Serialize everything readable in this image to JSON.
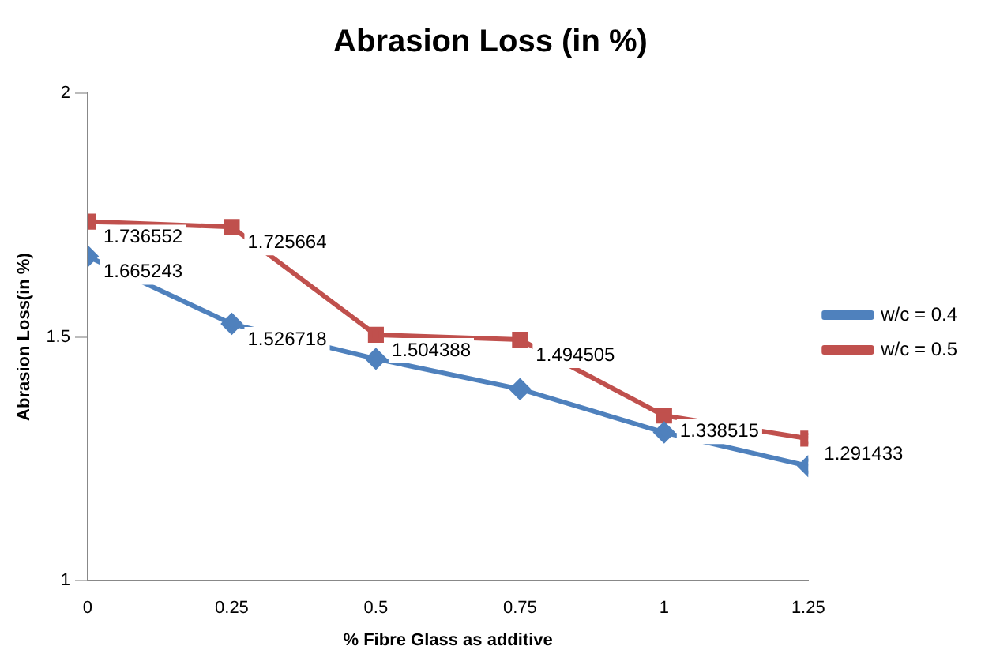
{
  "chart_data": {
    "type": "line",
    "title": "Abrasion Loss (in %)",
    "xlabel": "% Fibre Glass as additive",
    "ylabel": "Abrasion Loss(in %)",
    "x": [
      0,
      0.25,
      0.5,
      0.75,
      1,
      1.25
    ],
    "xlim": [
      0,
      1.25
    ],
    "xticks": [
      0,
      0.25,
      0.5,
      0.75,
      1,
      1.25
    ],
    "ylim": [
      1,
      2
    ],
    "yticks": [
      1,
      1.5,
      2
    ],
    "grid": false,
    "legend": "right",
    "series": [
      {
        "name": "w/c = 0.4",
        "color": "#4f81bd",
        "marker": "diamond",
        "values": [
          1.665243,
          1.526718,
          1.455,
          1.393,
          1.304,
          1.235
        ],
        "value_labels": [
          "1.665243",
          "1.526718",
          null,
          null,
          null,
          null
        ]
      },
      {
        "name": "w/c = 0.5",
        "color": "#c0504d",
        "marker": "square",
        "values": [
          1.736552,
          1.725664,
          1.504388,
          1.494505,
          1.338515,
          1.291433
        ],
        "value_labels": [
          "1.736552",
          "1.725664",
          "1.504388",
          "1.494505",
          "1.338515",
          "1.291433"
        ]
      }
    ]
  }
}
